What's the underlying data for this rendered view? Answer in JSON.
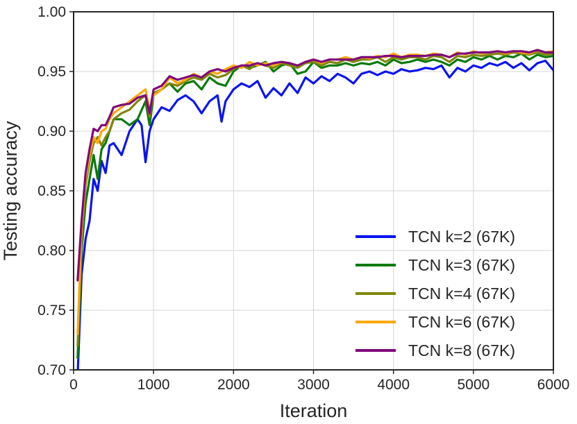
{
  "chart_data": {
    "type": "line",
    "title": "",
    "xlabel": "Iteration",
    "ylabel": "Testing accuracy",
    "xlim": [
      0,
      6000
    ],
    "ylim": [
      0.7,
      1.0
    ],
    "x_ticks": [
      0,
      1000,
      2000,
      3000,
      4000,
      5000,
      6000
    ],
    "y_ticks": [
      0.7,
      0.75,
      0.8,
      0.85,
      0.9,
      0.95,
      1.0
    ],
    "x_tick_labels": [
      "0",
      "1000",
      "2000",
      "3000",
      "4000",
      "5000",
      "6000"
    ],
    "y_tick_labels": [
      "0.70",
      "0.75",
      "0.80",
      "0.85",
      "0.90",
      "0.95",
      "1.00"
    ],
    "grid": true,
    "legend_position": "bottom-right",
    "series": [
      {
        "name": "TCN k=2 (67K)",
        "color": "#0a14f0",
        "x": [
          50,
          100,
          150,
          200,
          250,
          300,
          350,
          400,
          450,
          500,
          600,
          700,
          800,
          850,
          900,
          950,
          1000,
          1100,
          1200,
          1300,
          1400,
          1500,
          1600,
          1700,
          1800,
          1850,
          1900,
          2000,
          2100,
          2200,
          2300,
          2400,
          2500,
          2600,
          2700,
          2800,
          2900,
          3000,
          3100,
          3200,
          3300,
          3400,
          3500,
          3600,
          3700,
          3800,
          3900,
          4000,
          4100,
          4200,
          4300,
          4400,
          4500,
          4600,
          4700,
          4800,
          4900,
          5000,
          5100,
          5200,
          5300,
          5400,
          5500,
          5600,
          5700,
          5800,
          5900,
          6000
        ],
        "y": [
          0.695,
          0.78,
          0.81,
          0.825,
          0.86,
          0.85,
          0.875,
          0.865,
          0.888,
          0.89,
          0.88,
          0.9,
          0.91,
          0.905,
          0.874,
          0.9,
          0.91,
          0.92,
          0.917,
          0.926,
          0.93,
          0.925,
          0.915,
          0.925,
          0.93,
          0.908,
          0.925,
          0.935,
          0.94,
          0.937,
          0.942,
          0.928,
          0.936,
          0.93,
          0.94,
          0.932,
          0.945,
          0.94,
          0.946,
          0.942,
          0.948,
          0.945,
          0.94,
          0.948,
          0.95,
          0.947,
          0.95,
          0.948,
          0.952,
          0.95,
          0.951,
          0.953,
          0.952,
          0.955,
          0.945,
          0.953,
          0.95,
          0.955,
          0.953,
          0.957,
          0.955,
          0.958,
          0.953,
          0.957,
          0.951,
          0.957,
          0.959,
          0.951
        ]
      },
      {
        "name": "TCN k=3 (67K)",
        "color": "#0b7a0b",
        "x": [
          50,
          100,
          150,
          200,
          250,
          300,
          350,
          400,
          450,
          500,
          600,
          700,
          800,
          900,
          950,
          1000,
          1100,
          1200,
          1300,
          1400,
          1500,
          1600,
          1700,
          1800,
          1900,
          2000,
          2100,
          2200,
          2300,
          2400,
          2500,
          2600,
          2700,
          2800,
          2900,
          3000,
          3100,
          3200,
          3300,
          3400,
          3500,
          3600,
          3700,
          3800,
          3900,
          4000,
          4100,
          4200,
          4300,
          4400,
          4500,
          4600,
          4700,
          4800,
          4900,
          5000,
          5100,
          5200,
          5300,
          5400,
          5500,
          5600,
          5700,
          5800,
          5900,
          6000
        ],
        "y": [
          0.71,
          0.8,
          0.84,
          0.86,
          0.88,
          0.86,
          0.885,
          0.89,
          0.9,
          0.91,
          0.91,
          0.905,
          0.91,
          0.925,
          0.905,
          0.93,
          0.935,
          0.94,
          0.933,
          0.94,
          0.942,
          0.935,
          0.945,
          0.94,
          0.938,
          0.95,
          0.955,
          0.953,
          0.955,
          0.958,
          0.95,
          0.955,
          0.957,
          0.948,
          0.95,
          0.958,
          0.953,
          0.955,
          0.955,
          0.957,
          0.955,
          0.957,
          0.956,
          0.958,
          0.955,
          0.96,
          0.957,
          0.958,
          0.96,
          0.958,
          0.96,
          0.958,
          0.955,
          0.96,
          0.958,
          0.962,
          0.96,
          0.963,
          0.96,
          0.963,
          0.962,
          0.965,
          0.96,
          0.964,
          0.962,
          0.963
        ]
      },
      {
        "name": "TCN k=4 (67K)",
        "color": "#7f860d",
        "x": [
          50,
          100,
          150,
          200,
          250,
          300,
          350,
          400,
          450,
          500,
          600,
          700,
          800,
          900,
          950,
          1000,
          1100,
          1200,
          1300,
          1400,
          1500,
          1600,
          1700,
          1800,
          1900,
          2000,
          2100,
          2200,
          2300,
          2400,
          2500,
          2600,
          2700,
          2800,
          2900,
          3000,
          3100,
          3200,
          3300,
          3400,
          3500,
          3600,
          3700,
          3800,
          3900,
          4000,
          4100,
          4200,
          4300,
          4400,
          4500,
          4600,
          4700,
          4800,
          4900,
          5000,
          5100,
          5200,
          5300,
          5400,
          5500,
          5600,
          5700,
          5800,
          5900,
          6000
        ],
        "y": [
          0.72,
          0.81,
          0.855,
          0.875,
          0.89,
          0.895,
          0.888,
          0.895,
          0.9,
          0.91,
          0.915,
          0.918,
          0.925,
          0.93,
          0.912,
          0.932,
          0.935,
          0.94,
          0.938,
          0.942,
          0.945,
          0.943,
          0.948,
          0.945,
          0.947,
          0.952,
          0.955,
          0.952,
          0.957,
          0.955,
          0.953,
          0.957,
          0.955,
          0.953,
          0.957,
          0.958,
          0.955,
          0.958,
          0.957,
          0.96,
          0.958,
          0.96,
          0.96,
          0.962,
          0.958,
          0.962,
          0.96,
          0.962,
          0.962,
          0.96,
          0.963,
          0.962,
          0.958,
          0.963,
          0.962,
          0.964,
          0.963,
          0.964,
          0.965,
          0.964,
          0.966,
          0.965,
          0.964,
          0.966,
          0.964,
          0.965
        ]
      },
      {
        "name": "TCN k=6 (67K)",
        "color": "#fea80b",
        "x": [
          50,
          100,
          150,
          200,
          250,
          300,
          350,
          400,
          450,
          500,
          600,
          700,
          800,
          900,
          950,
          1000,
          1100,
          1200,
          1300,
          1400,
          1500,
          1600,
          1700,
          1800,
          1900,
          2000,
          2100,
          2200,
          2300,
          2400,
          2500,
          2600,
          2700,
          2800,
          2900,
          3000,
          3100,
          3200,
          3300,
          3400,
          3500,
          3600,
          3700,
          3800,
          3900,
          4000,
          4100,
          4200,
          4300,
          4400,
          4500,
          4600,
          4700,
          4800,
          4900,
          5000,
          5100,
          5200,
          5300,
          5400,
          5500,
          5600,
          5700,
          5800,
          5900,
          6000
        ],
        "y": [
          0.73,
          0.82,
          0.86,
          0.88,
          0.895,
          0.89,
          0.9,
          0.902,
          0.91,
          0.915,
          0.92,
          0.925,
          0.93,
          0.935,
          0.918,
          0.93,
          0.935,
          0.945,
          0.94,
          0.943,
          0.948,
          0.945,
          0.95,
          0.948,
          0.952,
          0.955,
          0.953,
          0.958,
          0.955,
          0.957,
          0.955,
          0.958,
          0.957,
          0.955,
          0.958,
          0.96,
          0.957,
          0.96,
          0.96,
          0.962,
          0.96,
          0.962,
          0.961,
          0.963,
          0.962,
          0.965,
          0.962,
          0.964,
          0.964,
          0.963,
          0.965,
          0.964,
          0.962,
          0.966,
          0.964,
          0.967,
          0.965,
          0.966,
          0.967,
          0.965,
          0.967,
          0.966,
          0.965,
          0.968,
          0.966,
          0.967
        ]
      },
      {
        "name": "TCN k=8 (67K)",
        "color": "#7e067c",
        "x": [
          50,
          100,
          150,
          200,
          250,
          300,
          350,
          400,
          450,
          500,
          600,
          700,
          800,
          900,
          950,
          1000,
          1100,
          1200,
          1300,
          1400,
          1500,
          1600,
          1700,
          1800,
          1900,
          2000,
          2100,
          2200,
          2300,
          2400,
          2500,
          2600,
          2700,
          2800,
          2900,
          3000,
          3100,
          3200,
          3300,
          3400,
          3500,
          3600,
          3700,
          3800,
          3900,
          4000,
          4100,
          4200,
          4300,
          4400,
          4500,
          4600,
          4700,
          4800,
          4900,
          5000,
          5100,
          5200,
          5300,
          5400,
          5500,
          5600,
          5700,
          5800,
          5900,
          6000
        ],
        "y": [
          0.775,
          0.825,
          0.865,
          0.885,
          0.902,
          0.9,
          0.905,
          0.905,
          0.912,
          0.92,
          0.922,
          0.923,
          0.928,
          0.93,
          0.915,
          0.935,
          0.938,
          0.946,
          0.943,
          0.945,
          0.947,
          0.945,
          0.95,
          0.952,
          0.95,
          0.953,
          0.955,
          0.955,
          0.957,
          0.955,
          0.957,
          0.958,
          0.957,
          0.955,
          0.958,
          0.96,
          0.958,
          0.96,
          0.96,
          0.96,
          0.96,
          0.962,
          0.962,
          0.962,
          0.963,
          0.963,
          0.962,
          0.963,
          0.963,
          0.963,
          0.964,
          0.964,
          0.962,
          0.965,
          0.965,
          0.966,
          0.966,
          0.966,
          0.967,
          0.966,
          0.967,
          0.967,
          0.966,
          0.968,
          0.966,
          0.966
        ]
      }
    ]
  }
}
